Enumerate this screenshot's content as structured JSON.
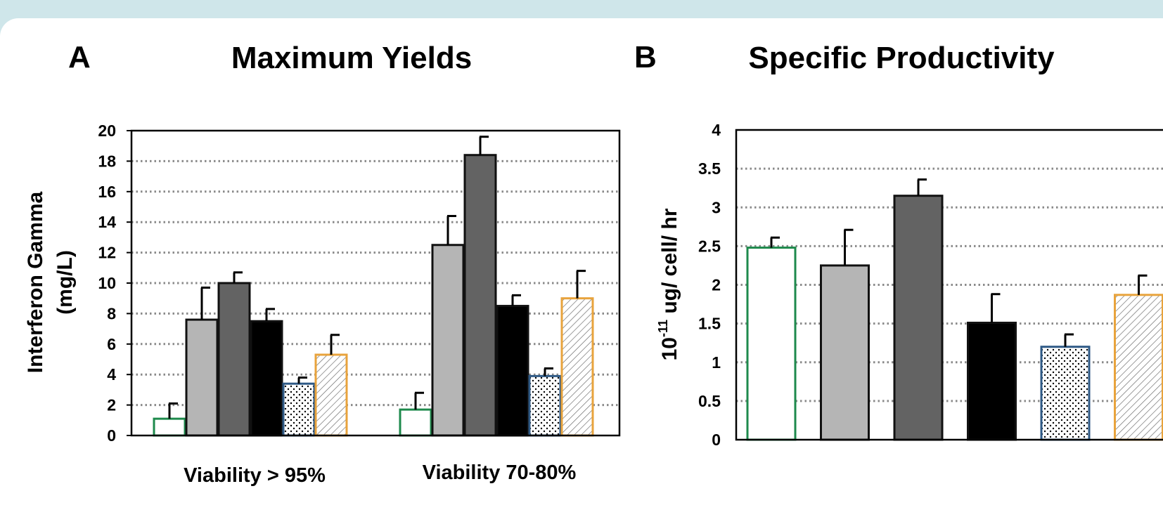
{
  "panels": [
    {
      "letter": "A",
      "title": "Maximum Yields"
    },
    {
      "letter": "B",
      "title": "Specific Productivity"
    }
  ],
  "series_styles": [
    {
      "stroke": "#1e8a4c",
      "fill": "#ffffff",
      "pattern": "none"
    },
    {
      "stroke": "#111111",
      "fill": "#b5b5b5",
      "pattern": "none"
    },
    {
      "stroke": "#111111",
      "fill": "#636363",
      "pattern": "none"
    },
    {
      "stroke": "#111111",
      "fill": "#000000",
      "pattern": "none"
    },
    {
      "stroke": "#2f5a86",
      "fill": "#ffffff",
      "pattern": "dots"
    },
    {
      "stroke": "#e8a33c",
      "fill": "#ffffff",
      "pattern": "hatch"
    }
  ],
  "chart_data": [
    {
      "type": "bar",
      "title": "Maximum Yields",
      "panel": "A",
      "ylabel_lines": [
        "Interferon Gamma",
        "(mg/L)"
      ],
      "xlabel": "",
      "categories": [
        "Viability > 95%",
        "Viability 70-80%"
      ],
      "ylim": [
        0,
        20
      ],
      "yticks": [
        0,
        2,
        4,
        6,
        8,
        10,
        12,
        14,
        16,
        18,
        20
      ],
      "yticklabels": [
        "0",
        "2",
        "4",
        "6",
        "8",
        "10",
        "12",
        "14",
        "16",
        "18",
        "20"
      ],
      "grid": true,
      "series": [
        {
          "values": [
            1.1,
            1.7
          ],
          "errors": [
            1.0,
            1.1
          ]
        },
        {
          "values": [
            7.6,
            12.5
          ],
          "errors": [
            2.1,
            1.9
          ]
        },
        {
          "values": [
            10.0,
            18.4
          ],
          "errors": [
            0.7,
            1.2
          ]
        },
        {
          "values": [
            7.5,
            8.5
          ],
          "errors": [
            0.8,
            0.7
          ]
        },
        {
          "values": [
            3.4,
            3.9
          ],
          "errors": [
            0.4,
            0.5
          ]
        },
        {
          "values": [
            5.3,
            9.0
          ],
          "errors": [
            1.3,
            1.8
          ]
        }
      ]
    },
    {
      "type": "bar",
      "title": "Specific Productivity",
      "panel": "B",
      "ylabel_exp": "10",
      "ylabel_sup": "-11",
      "ylabel_rest": " ug/ cell/ hr",
      "xlabel": "",
      "categories": [
        ""
      ],
      "ylim": [
        0,
        4
      ],
      "yticks": [
        0,
        0.5,
        1,
        1.5,
        2,
        2.5,
        3,
        3.5,
        4
      ],
      "yticklabels": [
        "0",
        "0.5",
        "1",
        "1.5",
        "2",
        "2.5",
        "3",
        "3.5",
        "4"
      ],
      "grid": true,
      "series": [
        {
          "values": [
            2.48
          ],
          "errors": [
            0.13
          ]
        },
        {
          "values": [
            2.25
          ],
          "errors": [
            0.46
          ]
        },
        {
          "values": [
            3.15
          ],
          "errors": [
            0.21
          ]
        },
        {
          "values": [
            1.51
          ],
          "errors": [
            0.37
          ]
        },
        {
          "values": [
            1.2
          ],
          "errors": [
            0.16
          ]
        },
        {
          "values": [
            1.87
          ],
          "errors": [
            0.25
          ]
        }
      ]
    }
  ]
}
